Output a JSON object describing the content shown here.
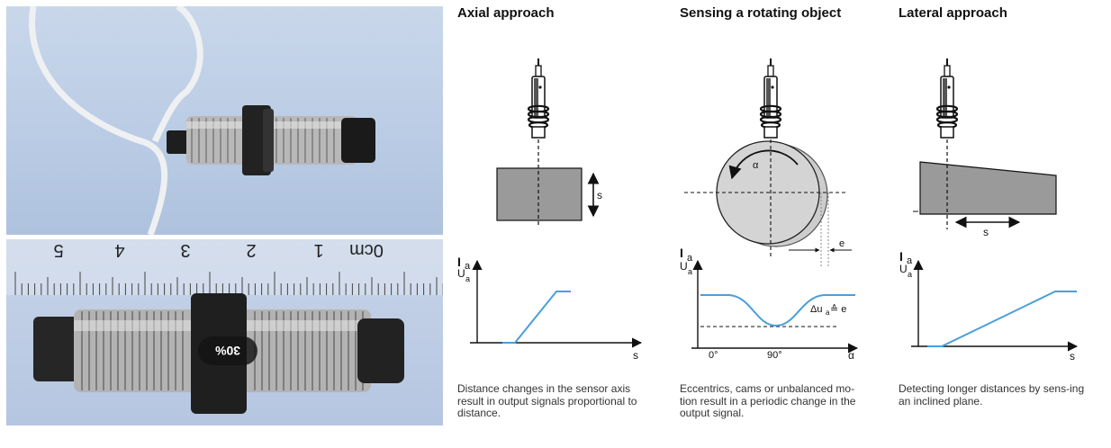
{
  "photos": {
    "ruler_labels": [
      "5",
      "4",
      "3",
      "2",
      "1",
      "0cm"
    ],
    "overlay_badge": "30%"
  },
  "panels": [
    {
      "heading": "Axial approach",
      "caption": "Distance changes in the sensor axis result in output signals proportional to distance.",
      "object_label": "s",
      "graph": {
        "y_label_top": "I",
        "y_label_top_sub": "a",
        "y_label_bottom": "U",
        "y_label_bottom_sub": "a",
        "x_label": "s"
      }
    },
    {
      "heading": "Sensing a rotating object",
      "caption": "Eccentrics, cams or unbalanced mo-tion result in a periodic change in the output signal.",
      "angle_label": "α",
      "eccentricity_label": "e",
      "graph": {
        "y_label_top": "I",
        "y_label_top_sub": "a",
        "y_label_bottom": "U",
        "y_label_bottom_sub": "a",
        "x_label": "α",
        "tick_0": "0°",
        "tick_90": "90°",
        "annotation": "Δu",
        "annotation_sub": "a",
        "annotation_rest": " ≙ e"
      }
    },
    {
      "heading": "Lateral approach",
      "caption": "Detecting longer distances by sens-ing an inclined plane.",
      "object_label": "s",
      "graph": {
        "y_label_top": "I",
        "y_label_top_sub": "a",
        "y_label_bottom": "U",
        "y_label_bottom_sub": "a",
        "x_label": "s"
      }
    }
  ],
  "colors": {
    "signal": "#4a9fd8",
    "object_fill": "#9a9a9a",
    "disc_fill": "#d4d4d4"
  }
}
